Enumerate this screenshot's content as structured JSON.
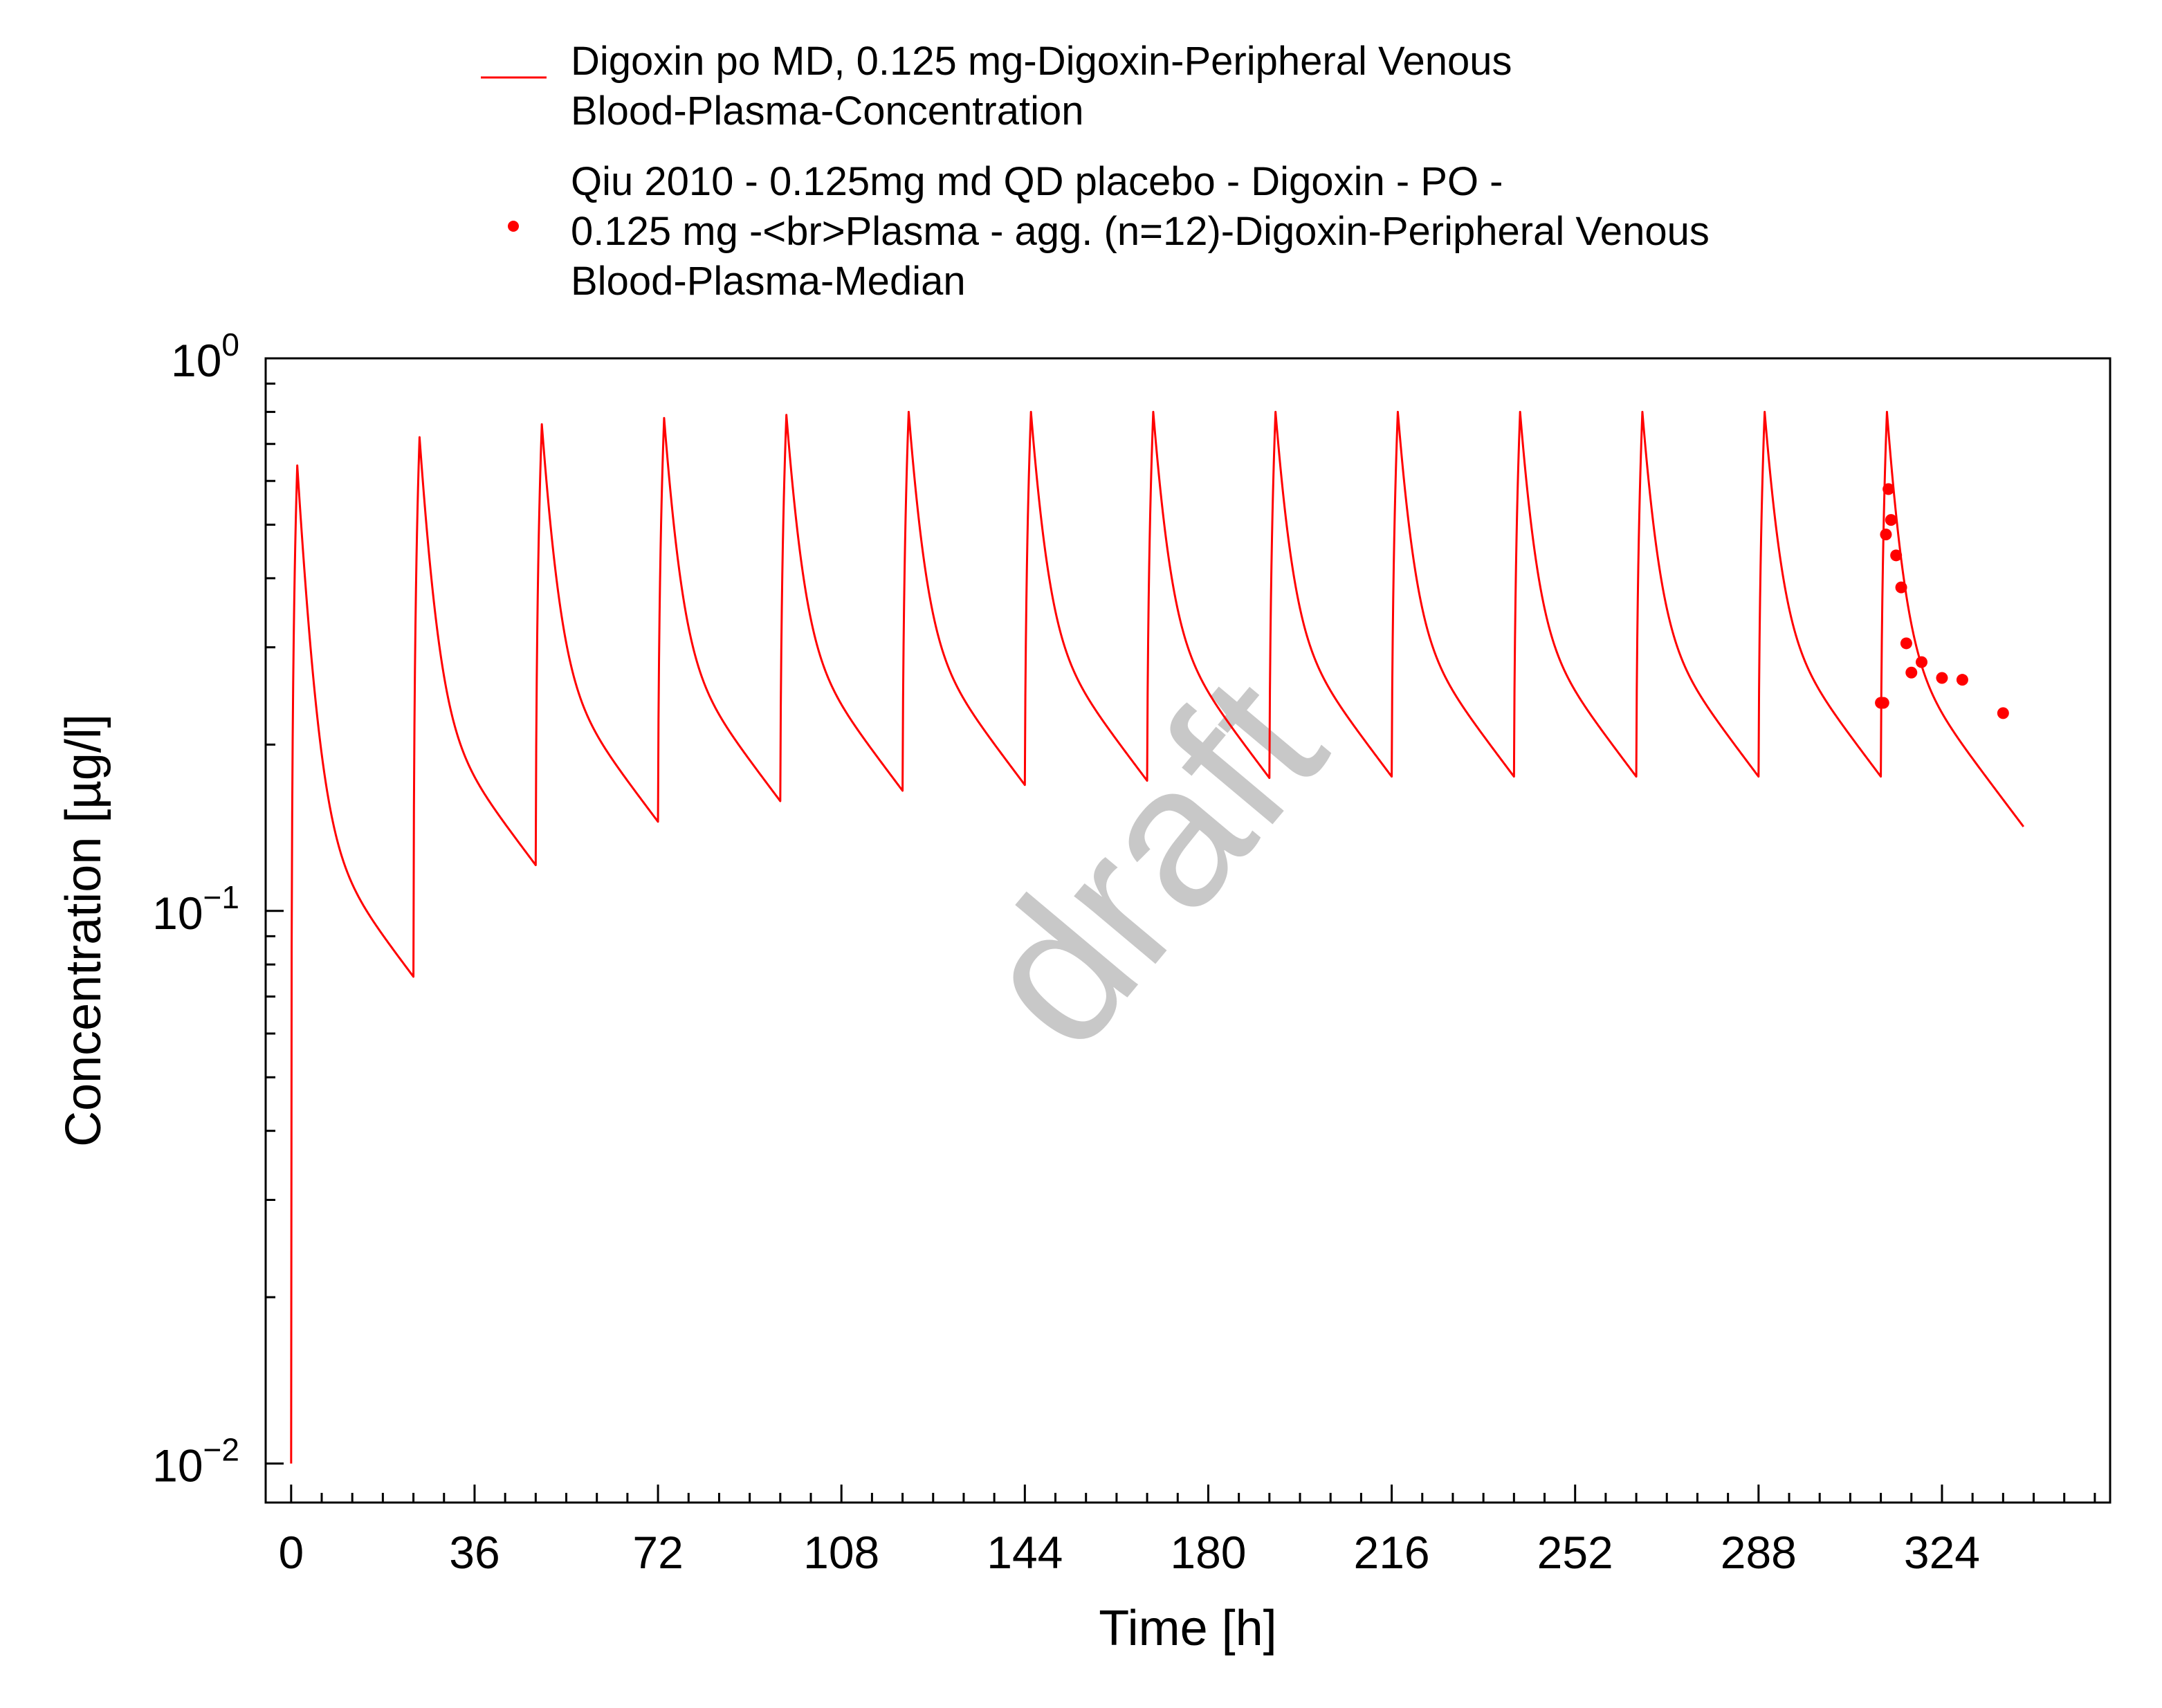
{
  "chart_data": {
    "type": "line",
    "xlabel": "Time [h]",
    "ylabel": "Concentration [µg/l]",
    "xlim": [
      -5,
      357
    ],
    "ylim": [
      0.0085,
      1.0
    ],
    "yscale": "log",
    "x_ticks": [
      0,
      36,
      72,
      108,
      144,
      180,
      216,
      252,
      288,
      324
    ],
    "y_ticks": [
      {
        "value": 1.0,
        "base": "10",
        "exp": "0"
      },
      {
        "value": 0.1,
        "base": "10",
        "exp": "−1"
      },
      {
        "value": 0.01,
        "base": "10",
        "exp": "−2"
      }
    ],
    "watermark": "draft",
    "grid": false,
    "legend_position": "top",
    "series": [
      {
        "name": "Digoxin po MD, 0.125 mg-Digoxin-Peripheral Venous Blood-Plasma-Concentration",
        "legend_lines": [
          "Digoxin po MD, 0.125 mg-Digoxin-Peripheral Venous",
          "Blood-Plasma-Concentration"
        ],
        "kind": "line",
        "color": "#ff0000",
        "dose_interval_h": 24,
        "end_h": 340,
        "x": [
          0,
          24,
          48,
          72,
          96,
          120,
          144,
          168,
          192,
          216,
          240,
          264,
          288,
          312
        ],
        "peaks": [
          0.64,
          0.72,
          0.76,
          0.78,
          0.79,
          0.8,
          0.8,
          0.8,
          0.8,
          0.8,
          0.8,
          0.8,
          0.8,
          0.8
        ],
        "troughs": [
          0.076,
          0.121,
          0.145,
          0.158,
          0.165,
          0.169,
          0.172,
          0.174,
          0.175,
          0.175,
          0.175,
          0.175,
          0.175,
          0.159
        ]
      },
      {
        "name": "Qiu 2010 - 0.125mg md QD placebo - Digoxin - PO - 0.125 mg -<br>Plasma - agg. (n=12)-Digoxin-Peripheral Venous Blood-Plasma-Median",
        "legend_lines": [
          "Qiu 2010 - 0.125mg md QD placebo - Digoxin - PO -",
          "0.125 mg -<br>Plasma - agg. (n=12)-Digoxin-Peripheral Venous",
          "Blood-Plasma-Median"
        ],
        "kind": "scatter",
        "color": "#ff0000",
        "points": [
          {
            "x": 312.0,
            "y": 0.238
          },
          {
            "x": 312.5,
            "y": 0.238
          },
          {
            "x": 313.0,
            "y": 0.48
          },
          {
            "x": 313.5,
            "y": 0.58
          },
          {
            "x": 314.0,
            "y": 0.51
          },
          {
            "x": 315.0,
            "y": 0.44
          },
          {
            "x": 316.0,
            "y": 0.385
          },
          {
            "x": 317.0,
            "y": 0.305
          },
          {
            "x": 318.0,
            "y": 0.27
          },
          {
            "x": 320.0,
            "y": 0.282
          },
          {
            "x": 324.0,
            "y": 0.264
          },
          {
            "x": 328.0,
            "y": 0.262
          },
          {
            "x": 336.0,
            "y": 0.228
          }
        ]
      }
    ]
  }
}
